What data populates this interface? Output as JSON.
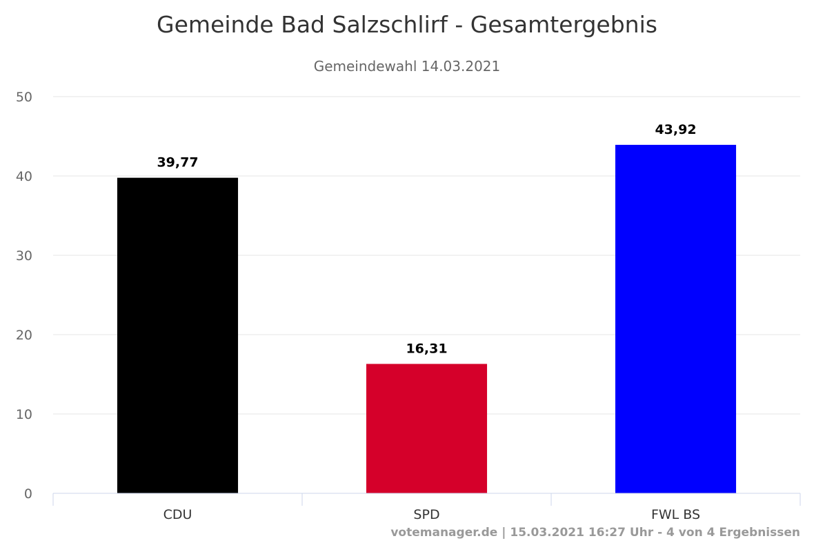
{
  "chart_data": {
    "type": "bar",
    "title": "Gemeinde Bad Salzschlirf - Gesamtergebnis",
    "subtitle": "Gemeindewahl 14.03.2021",
    "categories": [
      "CDU",
      "SPD",
      "FWL BS"
    ],
    "values": [
      39.77,
      16.31,
      43.92
    ],
    "data_labels": [
      "39,77",
      "16,31",
      "43,92"
    ],
    "colors": [
      "#000000",
      "#d5002a",
      "#0000ff"
    ],
    "ylim": [
      0,
      50
    ],
    "yticks": [
      0,
      10,
      20,
      30,
      40,
      50
    ],
    "xlabel": "",
    "ylabel": "",
    "grid": true,
    "legend": "none"
  },
  "credits": "votemanager.de | 15.03.2021 16:27 Uhr - 4 von 4 Ergebnissen"
}
